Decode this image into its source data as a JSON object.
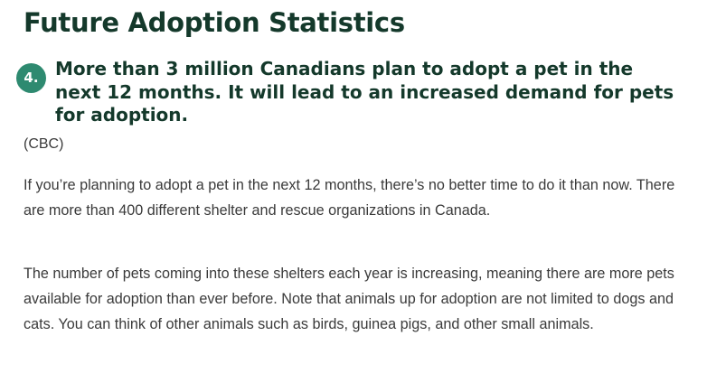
{
  "section": {
    "title": "Future Adoption Statistics"
  },
  "stat": {
    "number": "4.",
    "heading": "More than 3 million Canadians plan to adopt a pet in the next 12 months. It will lead to an increased demand for pets for adoption.",
    "source": "(CBC)"
  },
  "paragraphs": [
    "If you’re planning to adopt a pet in the next 12 months, there’s no better time to do it than now. There are more than 400 different shelter and rescue organizations in Canada.",
    "The number of pets coming into these shelters each year is increasing, meaning there are more pets available for adoption than ever before. Note that animals up for adoption are not limited to dogs and cats. You can think of other animals such as birds, guinea pigs, and other small animals."
  ],
  "colors": {
    "heading": "#14392b",
    "badge": "#2e8a70",
    "body_text": "#3a3a3a"
  }
}
